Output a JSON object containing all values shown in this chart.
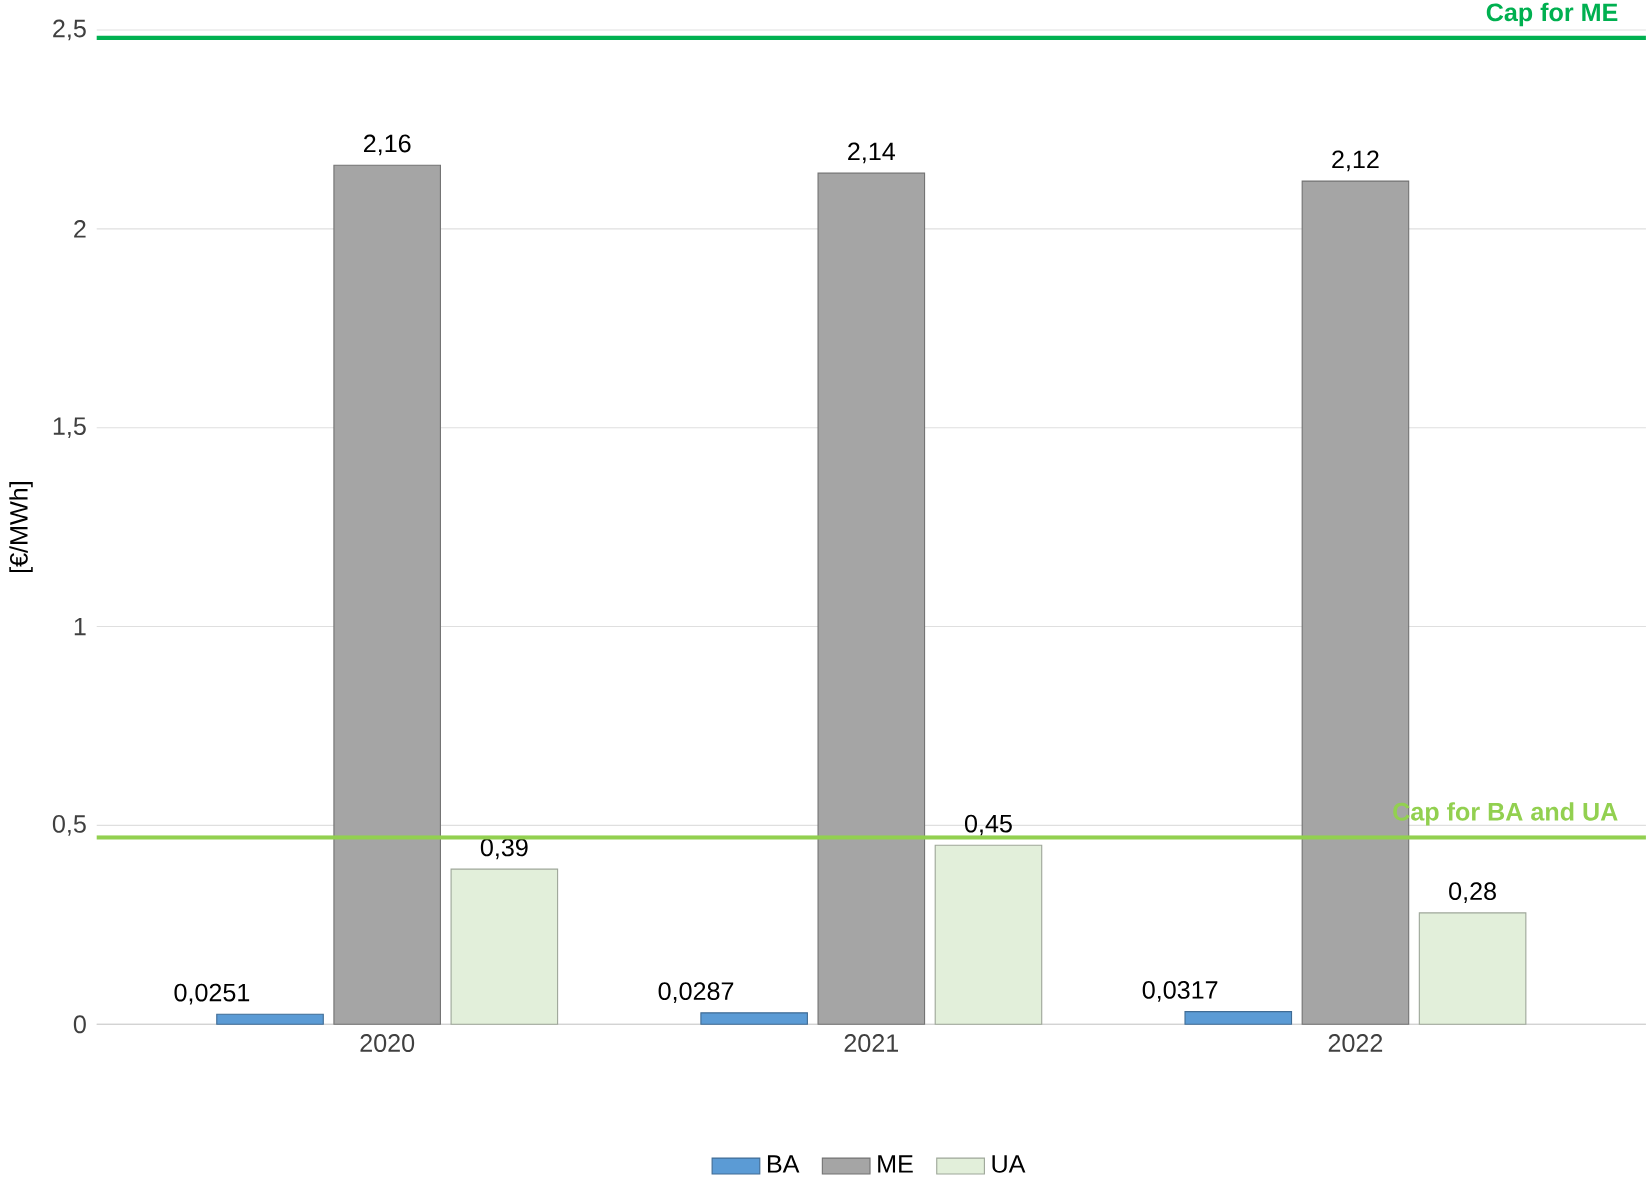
{
  "chart_data": {
    "type": "bar",
    "ylabel": "[€/MWh]",
    "categories": [
      "2020",
      "2021",
      "2022"
    ],
    "series": [
      {
        "name": "BA",
        "color": "#5b9bd5",
        "values": [
          0.0251,
          0.0287,
          0.0317
        ],
        "value_labels": [
          "0,0251",
          "0,0287",
          "0,0317"
        ]
      },
      {
        "name": "ME",
        "color": "#a5a5a5",
        "values": [
          2.16,
          2.14,
          2.12
        ],
        "value_labels": [
          "2,16",
          "2,14",
          "2,12"
        ]
      },
      {
        "name": "UA",
        "color": "#e2efda",
        "values": [
          0.39,
          0.45,
          0.28
        ],
        "value_labels": [
          "0,39",
          "0,45",
          "0,28"
        ]
      }
    ],
    "ylim": [
      0,
      2.5
    ],
    "yticks": [
      0,
      {
        "value": 0.5,
        "label": "0,5"
      },
      1,
      {
        "value": 1.5,
        "label": "1,5"
      },
      2,
      {
        "value": 2.5,
        "label": "2,5"
      }
    ],
    "ref_lines": [
      {
        "axis": "y",
        "value": 2.48,
        "label": "Cap for ME",
        "color": "#00b050"
      },
      {
        "axis": "y",
        "value": 0.47,
        "label": "Cap for BA and UA",
        "color": "#92d050"
      }
    ],
    "grid": "y",
    "legend": "bottom"
  }
}
